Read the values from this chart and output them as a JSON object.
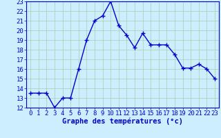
{
  "x": [
    0,
    1,
    2,
    3,
    4,
    5,
    6,
    7,
    8,
    9,
    10,
    11,
    12,
    13,
    14,
    15,
    16,
    17,
    18,
    19,
    20,
    21,
    22,
    23
  ],
  "y": [
    13.5,
    13.5,
    13.5,
    12.0,
    13.0,
    13.0,
    16.0,
    19.0,
    21.0,
    21.5,
    23.0,
    20.5,
    19.5,
    18.2,
    19.7,
    18.5,
    18.5,
    18.5,
    17.5,
    16.1,
    16.1,
    16.5,
    16.0,
    15.0
  ],
  "line_color": "#0000cc",
  "marker": "+",
  "marker_size": 4,
  "marker_linewidth": 1.0,
  "line_width": 1.0,
  "bg_color": "#cceeff",
  "grid_color": "#aaccaa",
  "xlabel": "Graphe des températures (°c)",
  "xlabel_color": "#0000cc",
  "tick_color": "#0000cc",
  "axis_color": "#0000cc",
  "ylim": [
    12,
    23
  ],
  "xlim": [
    0,
    23
  ],
  "yticks": [
    12,
    13,
    14,
    15,
    16,
    17,
    18,
    19,
    20,
    21,
    22,
    23
  ],
  "xticks": [
    0,
    1,
    2,
    3,
    4,
    5,
    6,
    7,
    8,
    9,
    10,
    11,
    12,
    13,
    14,
    15,
    16,
    17,
    18,
    19,
    20,
    21,
    22,
    23
  ],
  "xlabel_fontsize": 7.5,
  "tick_fontsize": 6.5
}
